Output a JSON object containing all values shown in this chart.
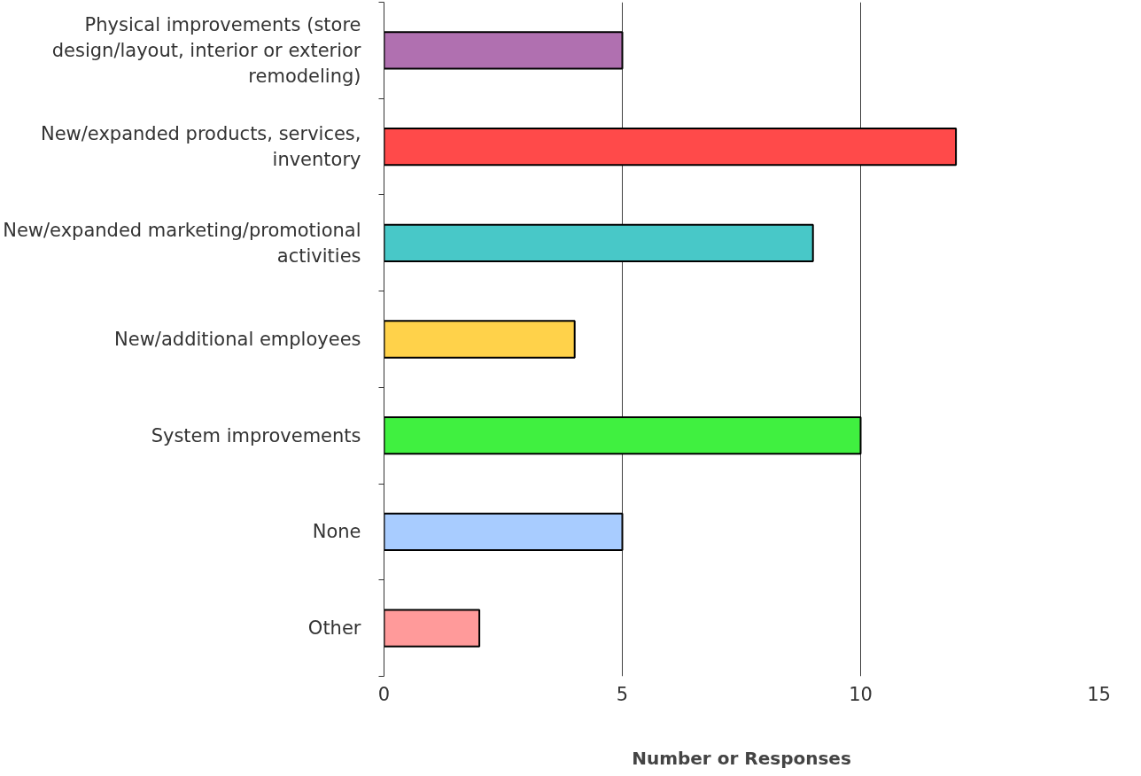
{
  "chart_data": {
    "type": "bar",
    "orientation": "horizontal",
    "xlabel": "Number or Responses",
    "categories": [
      "Physical improvements (store design/layout, interior or exterior remodeling)",
      "New/expanded products, services, inventory",
      "New/expanded marketing/promotional activities",
      "New/additional employees",
      "System improvements",
      "None",
      "Other"
    ],
    "values": [
      5,
      12,
      9,
      4,
      10,
      5,
      2
    ],
    "colors": [
      "#b070b0",
      "#ff4a4a",
      "#48c8c8",
      "#ffd24a",
      "#40f040",
      "#a8ccff",
      "#ff9a9a"
    ],
    "xlim": [
      0,
      15
    ],
    "xticks": [
      0,
      5,
      10,
      15
    ],
    "grid": "x"
  }
}
